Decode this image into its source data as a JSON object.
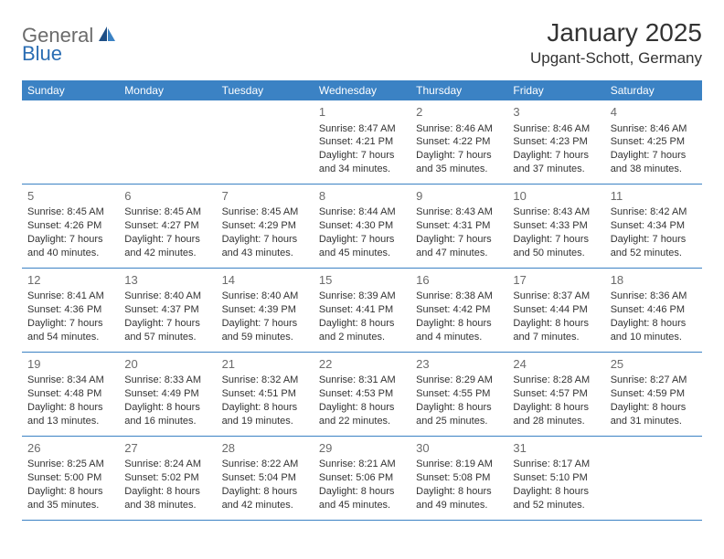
{
  "brand": {
    "text_gray": "General",
    "text_blue": "Blue"
  },
  "title": "January 2025",
  "location": "Upgant-Schott, Germany",
  "colors": {
    "header_bg": "#3b82c4",
    "header_text": "#ffffff",
    "rule": "#3b82c4",
    "day_num": "#6b6b6b",
    "body_text": "#333333",
    "logo_gray": "#6b6b6b",
    "logo_blue": "#2a6db3",
    "logo_dark_blue": "#1d4e86"
  },
  "day_labels": [
    "Sunday",
    "Monday",
    "Tuesday",
    "Wednesday",
    "Thursday",
    "Friday",
    "Saturday"
  ],
  "weeks": [
    [
      null,
      null,
      null,
      {
        "n": "1",
        "sr": "8:47 AM",
        "ss": "4:21 PM",
        "dl": "7 hours and 34 minutes."
      },
      {
        "n": "2",
        "sr": "8:46 AM",
        "ss": "4:22 PM",
        "dl": "7 hours and 35 minutes."
      },
      {
        "n": "3",
        "sr": "8:46 AM",
        "ss": "4:23 PM",
        "dl": "7 hours and 37 minutes."
      },
      {
        "n": "4",
        "sr": "8:46 AM",
        "ss": "4:25 PM",
        "dl": "7 hours and 38 minutes."
      }
    ],
    [
      {
        "n": "5",
        "sr": "8:45 AM",
        "ss": "4:26 PM",
        "dl": "7 hours and 40 minutes."
      },
      {
        "n": "6",
        "sr": "8:45 AM",
        "ss": "4:27 PM",
        "dl": "7 hours and 42 minutes."
      },
      {
        "n": "7",
        "sr": "8:45 AM",
        "ss": "4:29 PM",
        "dl": "7 hours and 43 minutes."
      },
      {
        "n": "8",
        "sr": "8:44 AM",
        "ss": "4:30 PM",
        "dl": "7 hours and 45 minutes."
      },
      {
        "n": "9",
        "sr": "8:43 AM",
        "ss": "4:31 PM",
        "dl": "7 hours and 47 minutes."
      },
      {
        "n": "10",
        "sr": "8:43 AM",
        "ss": "4:33 PM",
        "dl": "7 hours and 50 minutes."
      },
      {
        "n": "11",
        "sr": "8:42 AM",
        "ss": "4:34 PM",
        "dl": "7 hours and 52 minutes."
      }
    ],
    [
      {
        "n": "12",
        "sr": "8:41 AM",
        "ss": "4:36 PM",
        "dl": "7 hours and 54 minutes."
      },
      {
        "n": "13",
        "sr": "8:40 AM",
        "ss": "4:37 PM",
        "dl": "7 hours and 57 minutes."
      },
      {
        "n": "14",
        "sr": "8:40 AM",
        "ss": "4:39 PM",
        "dl": "7 hours and 59 minutes."
      },
      {
        "n": "15",
        "sr": "8:39 AM",
        "ss": "4:41 PM",
        "dl": "8 hours and 2 minutes."
      },
      {
        "n": "16",
        "sr": "8:38 AM",
        "ss": "4:42 PM",
        "dl": "8 hours and 4 minutes."
      },
      {
        "n": "17",
        "sr": "8:37 AM",
        "ss": "4:44 PM",
        "dl": "8 hours and 7 minutes."
      },
      {
        "n": "18",
        "sr": "8:36 AM",
        "ss": "4:46 PM",
        "dl": "8 hours and 10 minutes."
      }
    ],
    [
      {
        "n": "19",
        "sr": "8:34 AM",
        "ss": "4:48 PM",
        "dl": "8 hours and 13 minutes."
      },
      {
        "n": "20",
        "sr": "8:33 AM",
        "ss": "4:49 PM",
        "dl": "8 hours and 16 minutes."
      },
      {
        "n": "21",
        "sr": "8:32 AM",
        "ss": "4:51 PM",
        "dl": "8 hours and 19 minutes."
      },
      {
        "n": "22",
        "sr": "8:31 AM",
        "ss": "4:53 PM",
        "dl": "8 hours and 22 minutes."
      },
      {
        "n": "23",
        "sr": "8:29 AM",
        "ss": "4:55 PM",
        "dl": "8 hours and 25 minutes."
      },
      {
        "n": "24",
        "sr": "8:28 AM",
        "ss": "4:57 PM",
        "dl": "8 hours and 28 minutes."
      },
      {
        "n": "25",
        "sr": "8:27 AM",
        "ss": "4:59 PM",
        "dl": "8 hours and 31 minutes."
      }
    ],
    [
      {
        "n": "26",
        "sr": "8:25 AM",
        "ss": "5:00 PM",
        "dl": "8 hours and 35 minutes."
      },
      {
        "n": "27",
        "sr": "8:24 AM",
        "ss": "5:02 PM",
        "dl": "8 hours and 38 minutes."
      },
      {
        "n": "28",
        "sr": "8:22 AM",
        "ss": "5:04 PM",
        "dl": "8 hours and 42 minutes."
      },
      {
        "n": "29",
        "sr": "8:21 AM",
        "ss": "5:06 PM",
        "dl": "8 hours and 45 minutes."
      },
      {
        "n": "30",
        "sr": "8:19 AM",
        "ss": "5:08 PM",
        "dl": "8 hours and 49 minutes."
      },
      {
        "n": "31",
        "sr": "8:17 AM",
        "ss": "5:10 PM",
        "dl": "8 hours and 52 minutes."
      },
      null
    ]
  ],
  "labels": {
    "sunrise": "Sunrise:",
    "sunset": "Sunset:",
    "daylight": "Daylight:"
  }
}
